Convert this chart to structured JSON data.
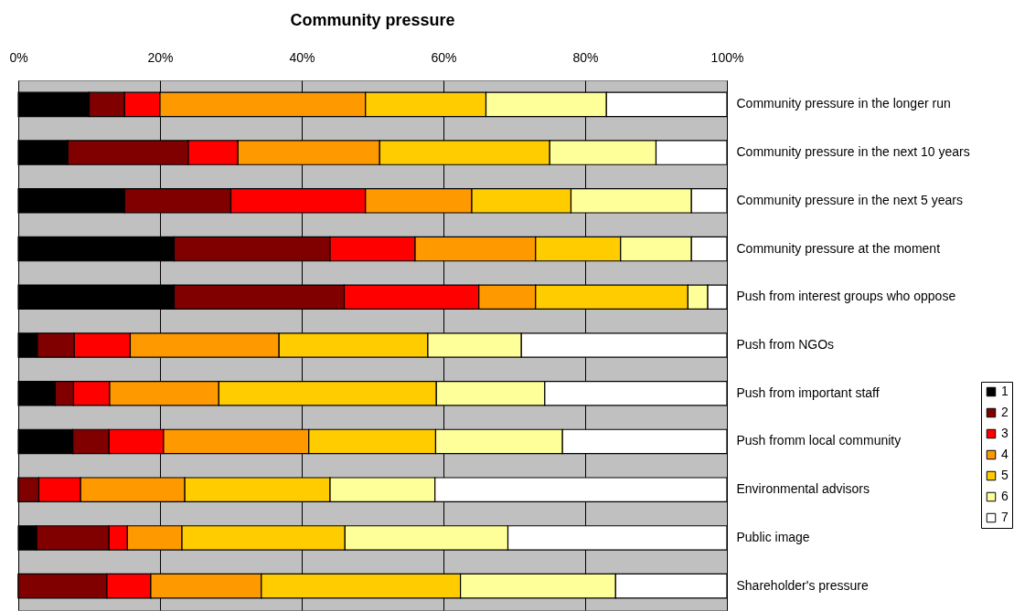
{
  "chart_data": {
    "type": "bar",
    "orientation": "horizontal",
    "stacked": true,
    "title": "Community pressure",
    "categories": [
      "Community pressure in the longer run",
      "Community pressure in the next 10 years",
      "Community pressure in the next 5 years",
      "Community pressure at the moment",
      "Push from interest groups who oppose",
      "Push from NGOs",
      "Push from important staff",
      "Push fromm local community",
      "Environmental advisors",
      "Public image",
      "Shareholder's pressure"
    ],
    "series": [
      {
        "name": "1",
        "color": "#000000",
        "values": [
          10,
          7,
          15,
          22,
          22,
          2.7,
          5.2,
          7.7,
          0,
          2.6,
          0
        ]
      },
      {
        "name": "2",
        "color": "#800000",
        "values": [
          5,
          17,
          15,
          22,
          24,
          5.2,
          2.6,
          5.1,
          2.9,
          10.2,
          12.5
        ]
      },
      {
        "name": "3",
        "color": "#ff0000",
        "values": [
          5,
          7,
          19,
          12,
          19,
          7.9,
          5.1,
          7.7,
          5.9,
          2.6,
          6.2
        ]
      },
      {
        "name": "4",
        "color": "#ff9900",
        "values": [
          29,
          20,
          15,
          17,
          8,
          21,
          15.4,
          20.5,
          14.7,
          7.7,
          15.6
        ]
      },
      {
        "name": "5",
        "color": "#ffcc00",
        "values": [
          17,
          24,
          14,
          12,
          21.5,
          21,
          30.7,
          17.9,
          20.5,
          23,
          28.1
        ]
      },
      {
        "name": "6",
        "color": "#ffff99",
        "values": [
          17,
          15,
          17,
          10,
          2.8,
          13.2,
          15.3,
          17.9,
          14.8,
          23,
          21.9
        ]
      },
      {
        "name": "7",
        "color": "#ffffff",
        "values": [
          17,
          10,
          5,
          5,
          2.7,
          29,
          25.7,
          23.2,
          41.2,
          30.9,
          15.7
        ]
      }
    ],
    "xlim": [
      0,
      100
    ],
    "xticks": [
      {
        "value": 0,
        "label": "0%"
      },
      {
        "value": 20,
        "label": "20%"
      },
      {
        "value": 40,
        "label": "40%"
      },
      {
        "value": 60,
        "label": "60%"
      },
      {
        "value": 80,
        "label": "80%"
      },
      {
        "value": 100,
        "label": "100%"
      }
    ],
    "grid": "x",
    "legend": "right"
  }
}
